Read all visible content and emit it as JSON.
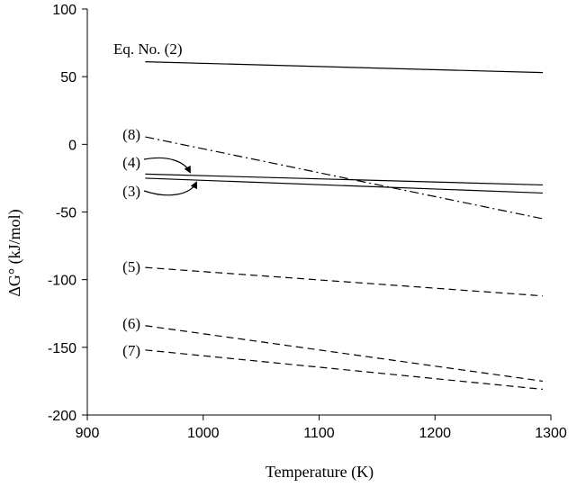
{
  "chart_data": {
    "type": "line",
    "title": "",
    "xlabel": "Temperature (K)",
    "ylabel": "ΔG° (kJ/mol)",
    "xlim": [
      900,
      1300
    ],
    "ylim": [
      -200,
      100
    ],
    "xticks": [
      900,
      1000,
      1100,
      1200,
      1300
    ],
    "yticks": [
      100,
      50,
      0,
      -50,
      -100,
      -150,
      -200
    ],
    "grid": false,
    "series": [
      {
        "name": "Eq. No. (2)",
        "label": "Eq. No. (2)",
        "style": "solid",
        "x": [
          950,
          1293
        ],
        "y": [
          61,
          53
        ]
      },
      {
        "name": "(8)",
        "label": "(8)",
        "style": "dashdot",
        "x": [
          950,
          1293
        ],
        "y": [
          5.5,
          -55
        ]
      },
      {
        "name": "(4)",
        "label": "(4)",
        "style": "solid",
        "x": [
          950,
          1293
        ],
        "y": [
          -22,
          -30
        ]
      },
      {
        "name": "(3)",
        "label": "(3)",
        "style": "solid",
        "x": [
          950,
          1293
        ],
        "y": [
          -25,
          -36
        ]
      },
      {
        "name": "(5)",
        "label": "(5)",
        "style": "dashed",
        "x": [
          950,
          1293
        ],
        "y": [
          -91,
          -112
        ]
      },
      {
        "name": "(6)",
        "label": "(6)",
        "style": "dashed",
        "x": [
          950,
          1293
        ],
        "y": [
          -134,
          -175
        ]
      },
      {
        "name": "(7)",
        "label": "(7)",
        "style": "dashed",
        "x": [
          950,
          1293
        ],
        "y": [
          -152,
          -181
        ]
      }
    ]
  }
}
